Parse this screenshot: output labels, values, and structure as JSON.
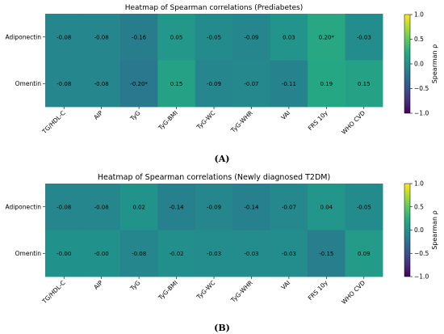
{
  "captions": [
    "(A)",
    "(B)"
  ],
  "chart_data": [
    {
      "type": "heatmap",
      "title": "Heatmap of Spearman correlations (Prediabetes)",
      "x_categories": [
        "TG/HDL-C",
        "AIP",
        "TyG",
        "TyG-BMI",
        "TyG-WC",
        "TyG-WHR",
        "VAI",
        "FRS 10y",
        "WHO CVD"
      ],
      "y_categories": [
        "Adiponectin",
        "Omentin"
      ],
      "values": [
        [
          -0.08,
          -0.08,
          -0.16,
          0.05,
          -0.05,
          -0.09,
          0.03,
          0.2,
          -0.03
        ],
        [
          -0.08,
          -0.08,
          -0.2,
          0.15,
          -0.09,
          -0.07,
          -0.11,
          0.19,
          0.15
        ]
      ],
      "cell_labels": [
        [
          "-0.08",
          "-0.08",
          "-0.16",
          "0.05",
          "-0.05",
          "-0.09",
          "0.03",
          "0.20*",
          "-0.03"
        ],
        [
          "-0.08",
          "-0.08",
          "-0.20*",
          "0.15",
          "-0.09",
          "-0.07",
          "-0.11",
          "0.19",
          "0.15"
        ]
      ],
      "colorbar": {
        "label": "Spearman ρ",
        "range": [
          -1,
          1
        ],
        "ticks": [
          "1.0",
          "0.5",
          "0.0",
          "−0.5",
          "−1.0"
        ],
        "tick_values": [
          1,
          0.5,
          0,
          -0.5,
          -1
        ],
        "colormap": "viridis"
      }
    },
    {
      "type": "heatmap",
      "title": "Heatmap of Spearman correlations (Newly diagnosed T2DM)",
      "x_categories": [
        "TG/HDL-C",
        "AIP",
        "TyG",
        "TyG-BMI",
        "TyG-WC",
        "TyG-WHR",
        "VAI",
        "FRS 10y",
        "WHO CVD"
      ],
      "y_categories": [
        "Adiponectin",
        "Omentin"
      ],
      "values": [
        [
          -0.08,
          -0.08,
          0.02,
          -0.14,
          -0.09,
          -0.14,
          -0.07,
          0.04,
          -0.05
        ],
        [
          0.0,
          0.0,
          -0.08,
          -0.02,
          -0.03,
          -0.03,
          -0.03,
          -0.15,
          0.09
        ]
      ],
      "cell_labels": [
        [
          "-0.08",
          "-0.08",
          "0.02",
          "-0.14",
          "-0.09",
          "-0.14",
          "-0.07",
          "0.04",
          "-0.05"
        ],
        [
          "-0.00",
          "-0.00",
          "-0.08",
          "-0.02",
          "-0.03",
          "-0.03",
          "-0.03",
          "-0.15",
          "0.09"
        ]
      ],
      "colorbar": {
        "label": "Spearman ρ",
        "range": [
          -1,
          1
        ],
        "ticks": [
          "1.0",
          "0.5",
          "0.0",
          "−0.5",
          "−1.0"
        ],
        "tick_values": [
          1,
          0.5,
          0,
          -0.5,
          -1
        ],
        "colormap": "viridis"
      }
    }
  ]
}
